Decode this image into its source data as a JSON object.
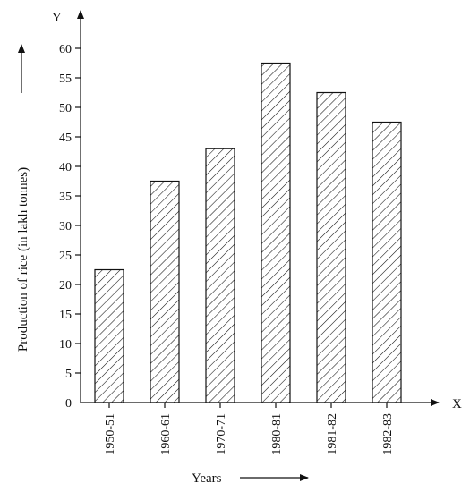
{
  "chart_data": {
    "type": "bar",
    "title": "",
    "xlabel": "Years",
    "ylabel": "Production of rice (in lakh tonnes)",
    "x_axis_letter": "X",
    "y_axis_letter": "Y",
    "categories": [
      "1950-51",
      "1960-61",
      "1970-71",
      "1980-81",
      "1981-82",
      "1982-83"
    ],
    "values": [
      22.5,
      37.5,
      43,
      57.5,
      52.5,
      47.5
    ],
    "ylim": [
      0,
      60
    ],
    "yticks": [
      0,
      5,
      10,
      15,
      20,
      25,
      30,
      35,
      40,
      45,
      50,
      55,
      60
    ],
    "grid": false,
    "legend": "none",
    "bar_fill": "diagonal-hatch",
    "colors": {
      "ink": "#111111",
      "background": "#ffffff"
    }
  }
}
